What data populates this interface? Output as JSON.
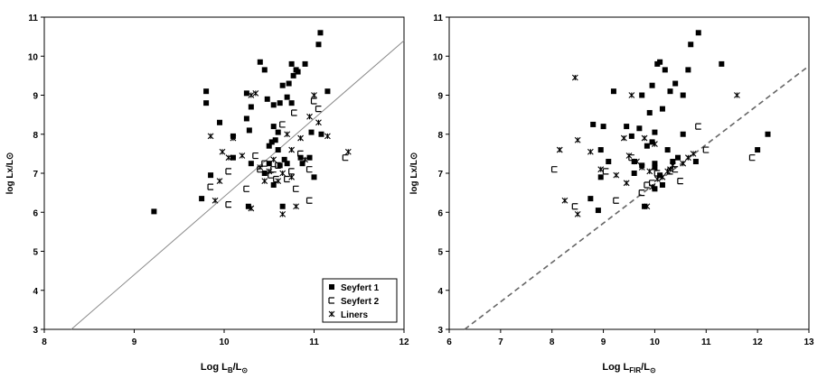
{
  "chart_data": [
    {
      "type": "scatter",
      "xlabel_main": "Log L",
      "xlabel_sub": "B",
      "xlabel_tail": "/L",
      "xlabel_sun": "⊙",
      "ylabel": "log Lx/L⊙",
      "xlim": [
        8,
        12
      ],
      "ylim": [
        3,
        11
      ],
      "xticks": [
        "8",
        "9",
        "10",
        "11",
        "12"
      ],
      "yticks": [
        "3",
        "4",
        "5",
        "6",
        "7",
        "8",
        "9",
        "10",
        "11"
      ],
      "fit_line": {
        "style": "solid",
        "points": [
          [
            8.3,
            3.0
          ],
          [
            12.0,
            10.4
          ]
        ]
      },
      "legend": {
        "placement": "bottom-right",
        "entries": [
          "Seyfert 1",
          "Seyfert 2",
          "Liners"
        ]
      },
      "series": [
        {
          "name": "Seyfert 1",
          "marker": "filled-square",
          "points": [
            [
              9.22,
              6.02
            ],
            [
              9.75,
              6.35
            ],
            [
              9.8,
              9.1
            ],
            [
              9.8,
              8.8
            ],
            [
              9.85,
              6.95
            ],
            [
              9.95,
              8.3
            ],
            [
              10.1,
              7.95
            ],
            [
              10.1,
              7.4
            ],
            [
              10.25,
              9.05
            ],
            [
              10.25,
              8.4
            ],
            [
              10.28,
              8.1
            ],
            [
              10.27,
              6.15
            ],
            [
              10.3,
              8.7
            ],
            [
              10.3,
              7.25
            ],
            [
              10.4,
              9.85
            ],
            [
              10.45,
              9.65
            ],
            [
              10.48,
              8.9
            ],
            [
              10.5,
              7.7
            ],
            [
              10.53,
              7.8
            ],
            [
              10.55,
              8.75
            ],
            [
              10.55,
              8.2
            ],
            [
              10.57,
              7.85
            ],
            [
              10.6,
              8.05
            ],
            [
              10.6,
              7.6
            ],
            [
              10.62,
              8.8
            ],
            [
              10.65,
              9.25
            ],
            [
              10.67,
              7.35
            ],
            [
              10.7,
              8.95
            ],
            [
              10.7,
              7.25
            ],
            [
              10.72,
              9.3
            ],
            [
              10.75,
              9.8
            ],
            [
              10.75,
              8.8
            ],
            [
              10.77,
              9.5
            ],
            [
              10.8,
              9.65
            ],
            [
              10.82,
              9.6
            ],
            [
              10.85,
              7.4
            ],
            [
              10.87,
              7.25
            ],
            [
              10.9,
              9.8
            ],
            [
              10.95,
              7.4
            ],
            [
              10.97,
              8.05
            ],
            [
              11.0,
              6.9
            ],
            [
              11.05,
              10.3
            ],
            [
              11.07,
              10.6
            ],
            [
              11.08,
              8.0
            ],
            [
              11.15,
              9.1
            ],
            [
              10.45,
              7.0
            ],
            [
              10.55,
              6.7
            ],
            [
              10.65,
              6.15
            ],
            [
              10.5,
              7.25
            ],
            [
              10.62,
              7.2
            ]
          ]
        },
        {
          "name": "Seyfert 2",
          "marker": "open-square",
          "points": [
            [
              9.85,
              6.65
            ],
            [
              10.05,
              7.05
            ],
            [
              10.05,
              6.2
            ],
            [
              10.25,
              6.6
            ],
            [
              10.35,
              7.45
            ],
            [
              10.4,
              7.1
            ],
            [
              10.45,
              7.25
            ],
            [
              10.55,
              7.1
            ],
            [
              10.58,
              6.85
            ],
            [
              10.6,
              7.2
            ],
            [
              10.65,
              8.25
            ],
            [
              10.7,
              6.85
            ],
            [
              10.75,
              7.05
            ],
            [
              10.8,
              6.6
            ],
            [
              10.95,
              6.3
            ],
            [
              10.95,
              7.1
            ],
            [
              11.0,
              8.85
            ],
            [
              11.05,
              8.65
            ],
            [
              11.35,
              7.4
            ],
            [
              10.85,
              7.5
            ],
            [
              10.52,
              6.95
            ],
            [
              10.78,
              8.55
            ]
          ]
        },
        {
          "name": "Liners",
          "marker": "asterisk",
          "points": [
            [
              9.85,
              7.95
            ],
            [
              9.9,
              6.3
            ],
            [
              9.95,
              6.8
            ],
            [
              9.98,
              7.55
            ],
            [
              10.05,
              7.4
            ],
            [
              10.1,
              7.9
            ],
            [
              10.3,
              9.0
            ],
            [
              10.3,
              6.1
            ],
            [
              10.4,
              7.15
            ],
            [
              10.45,
              6.8
            ],
            [
              10.5,
              7.05
            ],
            [
              10.55,
              7.35
            ],
            [
              10.6,
              6.8
            ],
            [
              10.65,
              7.0
            ],
            [
              10.65,
              5.95
            ],
            [
              10.7,
              8.0
            ],
            [
              10.75,
              7.6
            ],
            [
              10.75,
              6.9
            ],
            [
              10.8,
              6.15
            ],
            [
              10.85,
              7.9
            ],
            [
              10.9,
              7.35
            ],
            [
              10.95,
              8.45
            ],
            [
              11.0,
              9.0
            ],
            [
              11.05,
              8.3
            ],
            [
              11.15,
              7.95
            ],
            [
              11.38,
              7.55
            ],
            [
              10.35,
              9.05
            ],
            [
              10.2,
              7.45
            ]
          ]
        }
      ]
    },
    {
      "type": "scatter",
      "xlabel_main": "Log L",
      "xlabel_sub": "FIR",
      "xlabel_tail": "/L",
      "xlabel_sun": "⊙",
      "ylabel": "log Lx/L⊙",
      "xlim": [
        6,
        13
      ],
      "ylim": [
        3,
        11
      ],
      "xticks": [
        "6",
        "7",
        "8",
        "9",
        "10",
        "11",
        "12",
        "13"
      ],
      "yticks": [
        "3",
        "4",
        "5",
        "6",
        "7",
        "8",
        "9",
        "10",
        "11"
      ],
      "fit_line": {
        "style": "dashed",
        "points": [
          [
            6.3,
            3.0
          ],
          [
            13.0,
            9.75
          ]
        ]
      },
      "series": [
        {
          "name": "Seyfert 1",
          "marker": "filled-square",
          "points": [
            [
              8.75,
              6.35
            ],
            [
              8.8,
              8.25
            ],
            [
              8.9,
              6.05
            ],
            [
              8.95,
              6.9
            ],
            [
              8.95,
              7.6
            ],
            [
              9.0,
              8.2
            ],
            [
              9.1,
              7.3
            ],
            [
              9.2,
              9.1
            ],
            [
              9.45,
              8.2
            ],
            [
              9.55,
              7.95
            ],
            [
              9.6,
              7.3
            ],
            [
              9.7,
              8.15
            ],
            [
              9.75,
              7.2
            ],
            [
              9.75,
              9.0
            ],
            [
              9.8,
              6.15
            ],
            [
              9.85,
              7.7
            ],
            [
              9.9,
              8.55
            ],
            [
              9.95,
              9.25
            ],
            [
              9.95,
              7.8
            ],
            [
              10.0,
              8.05
            ],
            [
              10.0,
              7.25
            ],
            [
              10.0,
              6.6
            ],
            [
              10.05,
              9.8
            ],
            [
              10.1,
              9.85
            ],
            [
              10.15,
              8.65
            ],
            [
              10.15,
              6.7
            ],
            [
              10.2,
              9.65
            ],
            [
              10.25,
              7.6
            ],
            [
              10.3,
              9.1
            ],
            [
              10.35,
              7.3
            ],
            [
              10.4,
              9.3
            ],
            [
              10.45,
              7.4
            ],
            [
              10.55,
              8.0
            ],
            [
              10.55,
              9.0
            ],
            [
              10.65,
              9.65
            ],
            [
              10.7,
              10.3
            ],
            [
              10.8,
              7.3
            ],
            [
              10.85,
              10.6
            ],
            [
              11.3,
              9.8
            ],
            [
              12.0,
              7.6
            ],
            [
              12.2,
              8.0
            ],
            [
              9.6,
              7.0
            ],
            [
              10.1,
              6.95
            ],
            [
              10.0,
              7.15
            ]
          ]
        },
        {
          "name": "Seyfert 2",
          "marker": "open-square",
          "points": [
            [
              8.05,
              7.1
            ],
            [
              8.45,
              6.15
            ],
            [
              9.05,
              7.05
            ],
            [
              9.25,
              6.3
            ],
            [
              9.55,
              7.4
            ],
            [
              9.75,
              6.5
            ],
            [
              9.85,
              6.7
            ],
            [
              9.95,
              6.75
            ],
            [
              10.05,
              7.0
            ],
            [
              10.4,
              7.1
            ],
            [
              10.5,
              6.8
            ],
            [
              10.85,
              8.2
            ],
            [
              11.0,
              7.6
            ],
            [
              11.9,
              7.4
            ],
            [
              10.3,
              7.05
            ]
          ]
        },
        {
          "name": "Liners",
          "marker": "asterisk",
          "points": [
            [
              8.15,
              7.6
            ],
            [
              8.25,
              6.3
            ],
            [
              8.45,
              9.45
            ],
            [
              8.5,
              7.85
            ],
            [
              8.5,
              5.95
            ],
            [
              8.75,
              7.55
            ],
            [
              8.95,
              7.1
            ],
            [
              9.25,
              6.95
            ],
            [
              9.4,
              7.9
            ],
            [
              9.45,
              6.75
            ],
            [
              9.5,
              7.45
            ],
            [
              9.55,
              9.0
            ],
            [
              9.65,
              7.3
            ],
            [
              9.75,
              7.15
            ],
            [
              9.8,
              7.9
            ],
            [
              9.85,
              6.15
            ],
            [
              9.9,
              7.05
            ],
            [
              9.95,
              6.65
            ],
            [
              10.0,
              7.75
            ],
            [
              10.05,
              6.85
            ],
            [
              10.15,
              6.9
            ],
            [
              10.25,
              7.05
            ],
            [
              10.3,
              7.1
            ],
            [
              10.55,
              7.25
            ],
            [
              10.65,
              7.4
            ],
            [
              10.75,
              7.5
            ],
            [
              11.6,
              9.0
            ],
            [
              10.35,
              7.2
            ]
          ]
        }
      ]
    }
  ]
}
